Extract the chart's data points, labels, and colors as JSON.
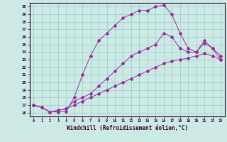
{
  "title": "",
  "xlabel": "Windchill (Refroidissement éolien,°C)",
  "ylabel": "",
  "background_color": "#cce9e4",
  "grid_color": "#99cccc",
  "line_color": "#993399",
  "xlim": [
    -0.5,
    23.5
  ],
  "ylim": [
    15.5,
    30.5
  ],
  "xticks": [
    0,
    1,
    2,
    3,
    4,
    5,
    6,
    7,
    8,
    9,
    10,
    11,
    12,
    13,
    14,
    15,
    16,
    17,
    18,
    19,
    20,
    21,
    22,
    23
  ],
  "yticks": [
    16,
    17,
    18,
    19,
    20,
    21,
    22,
    23,
    24,
    25,
    26,
    27,
    28,
    29,
    30
  ],
  "curve1_x": [
    0,
    1,
    2,
    3,
    4,
    5,
    6,
    7,
    8,
    9,
    10,
    11,
    12,
    13,
    14,
    15,
    16,
    17,
    18,
    19,
    20,
    21,
    22,
    23
  ],
  "curve1_y": [
    17.0,
    16.7,
    16.1,
    16.1,
    16.2,
    18.0,
    21.0,
    23.5,
    25.5,
    26.5,
    27.5,
    28.5,
    29.0,
    29.5,
    29.5,
    30.0,
    30.2,
    29.0,
    26.5,
    24.5,
    24.0,
    25.5,
    24.5,
    23.0
  ],
  "curve2_x": [
    0,
    1,
    2,
    3,
    4,
    5,
    6,
    7,
    8,
    9,
    10,
    11,
    12,
    13,
    14,
    15,
    16,
    17,
    18,
    19,
    20,
    21,
    22,
    23
  ],
  "curve2_y": [
    17.0,
    16.7,
    16.1,
    16.3,
    16.5,
    17.5,
    18.0,
    18.5,
    19.5,
    20.5,
    21.5,
    22.5,
    23.5,
    24.0,
    24.5,
    25.0,
    26.5,
    26.0,
    24.5,
    24.0,
    24.0,
    25.2,
    24.5,
    23.5
  ],
  "curve3_x": [
    0,
    1,
    2,
    3,
    4,
    5,
    6,
    7,
    8,
    9,
    10,
    11,
    12,
    13,
    14,
    15,
    16,
    17,
    18,
    19,
    20,
    21,
    22,
    23
  ],
  "curve3_y": [
    17.0,
    16.7,
    16.1,
    16.3,
    16.5,
    17.0,
    17.5,
    18.0,
    18.5,
    19.0,
    19.5,
    20.0,
    20.5,
    21.0,
    21.5,
    22.0,
    22.5,
    22.8,
    23.0,
    23.2,
    23.5,
    23.8,
    23.5,
    23.0
  ],
  "figsize": [
    3.2,
    2.0
  ],
  "dpi": 100
}
